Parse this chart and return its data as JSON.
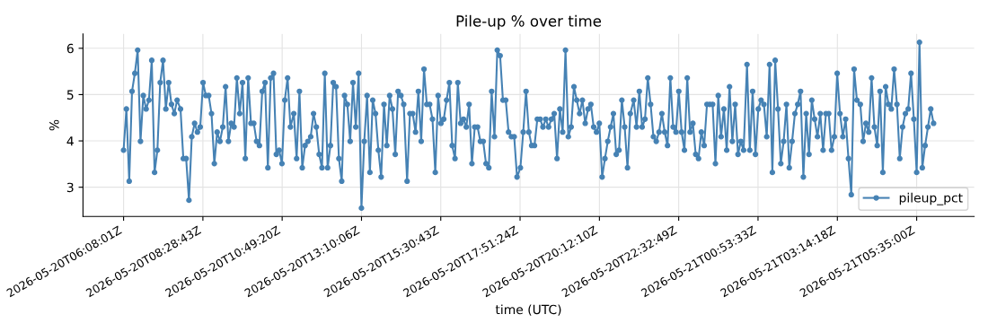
{
  "chart_data": {
    "type": "line",
    "title": "Pile-up % over time",
    "xlabel": "time (UTC)",
    "ylabel": "%",
    "x": [
      "2026-05-20T06:08",
      "2026-05-20T06:13",
      "2026-05-20T06:18",
      "2026-05-20T06:23",
      "2026-05-20T06:28",
      "2026-05-20T06:33",
      "2026-05-20T06:38",
      "2026-05-20T06:43",
      "2026-05-20T06:48",
      "2026-05-20T06:53",
      "2026-05-20T06:58",
      "2026-05-20T07:03",
      "2026-05-20T07:08",
      "2026-05-20T07:13",
      "2026-05-20T07:18",
      "2026-05-20T07:23",
      "2026-05-20T07:28",
      "2026-05-20T07:33",
      "2026-05-20T07:38",
      "2026-05-20T07:43",
      "2026-05-20T07:49",
      "2026-05-20T07:54",
      "2026-05-20T07:59",
      "2026-05-20T08:04",
      "2026-05-20T08:09",
      "2026-05-20T08:14",
      "2026-05-20T08:19",
      "2026-05-20T08:24",
      "2026-05-20T08:29",
      "2026-05-20T08:34",
      "2026-05-20T08:39",
      "2026-05-20T08:44",
      "2026-05-20T08:49",
      "2026-05-20T08:54",
      "2026-05-20T08:59",
      "2026-05-20T09:04",
      "2026-05-20T09:09",
      "2026-05-20T09:14",
      "2026-05-20T09:19",
      "2026-05-20T09:24",
      "2026-05-20T09:29",
      "2026-05-20T09:34",
      "2026-05-20T09:39",
      "2026-05-20T09:44",
      "2026-05-20T09:49",
      "2026-05-20T09:54",
      "2026-05-20T09:59",
      "2026-05-20T10:04",
      "2026-05-20T10:09",
      "2026-05-20T10:14",
      "2026-05-20T10:19",
      "2026-05-20T10:24",
      "2026-05-20T10:29",
      "2026-05-20T10:34",
      "2026-05-20T10:39",
      "2026-05-20T10:44",
      "2026-05-20T10:49",
      "2026-05-20T10:54",
      "2026-05-20T10:59",
      "2026-05-20T11:04",
      "2026-05-20T11:10",
      "2026-05-20T11:15",
      "2026-05-20T11:20",
      "2026-05-20T11:25",
      "2026-05-20T11:30",
      "2026-05-20T11:35",
      "2026-05-20T11:40",
      "2026-05-20T11:45",
      "2026-05-20T11:50",
      "2026-05-20T11:55",
      "2026-05-20T12:00",
      "2026-05-20T12:05",
      "2026-05-20T12:10",
      "2026-05-20T12:15",
      "2026-05-20T12:20",
      "2026-05-20T12:25",
      "2026-05-20T12:30",
      "2026-05-20T12:35",
      "2026-05-20T12:40",
      "2026-05-20T12:45",
      "2026-05-20T12:50",
      "2026-05-20T12:55",
      "2026-05-20T13:00",
      "2026-05-20T13:05",
      "2026-05-20T13:10",
      "2026-05-20T13:15",
      "2026-05-20T13:20",
      "2026-05-20T13:25",
      "2026-05-20T13:30",
      "2026-05-20T13:35",
      "2026-05-20T13:40",
      "2026-05-20T13:45",
      "2026-05-20T13:50",
      "2026-05-20T13:55",
      "2026-05-20T14:00",
      "2026-05-20T14:05",
      "2026-05-20T14:10",
      "2026-05-20T14:15",
      "2026-05-20T14:20",
      "2026-05-20T14:25",
      "2026-05-20T14:31",
      "2026-05-20T14:36",
      "2026-05-20T14:41",
      "2026-05-20T14:46",
      "2026-05-20T14:51",
      "2026-05-20T14:56",
      "2026-05-20T15:01",
      "2026-05-20T15:06",
      "2026-05-20T15:11",
      "2026-05-20T15:16",
      "2026-05-20T15:21",
      "2026-05-20T15:26",
      "2026-05-20T15:31",
      "2026-05-20T15:36",
      "2026-05-20T15:41",
      "2026-05-20T15:46",
      "2026-05-20T15:51",
      "2026-05-20T15:56",
      "2026-05-20T16:01",
      "2026-05-20T16:06",
      "2026-05-20T16:11",
      "2026-05-20T16:16",
      "2026-05-20T16:21",
      "2026-05-20T16:26",
      "2026-05-20T16:31",
      "2026-05-20T16:36",
      "2026-05-20T16:41",
      "2026-05-20T16:46",
      "2026-05-20T16:51",
      "2026-05-20T16:56",
      "2026-05-20T17:01",
      "2026-05-20T17:06",
      "2026-05-20T17:11",
      "2026-05-20T17:16",
      "2026-05-20T17:21",
      "2026-05-20T17:26",
      "2026-05-20T17:31",
      "2026-05-20T17:36",
      "2026-05-20T17:41",
      "2026-05-20T17:46",
      "2026-05-20T17:52",
      "2026-05-20T17:57",
      "2026-05-20T18:02",
      "2026-05-20T18:07",
      "2026-05-20T18:12",
      "2026-05-20T18:17",
      "2026-05-20T18:22",
      "2026-05-20T18:27",
      "2026-05-20T18:32",
      "2026-05-20T18:37",
      "2026-05-20T18:42",
      "2026-05-20T18:47",
      "2026-05-20T18:52",
      "2026-05-20T18:57",
      "2026-05-20T19:02",
      "2026-05-20T19:07",
      "2026-05-20T19:12",
      "2026-05-20T19:17",
      "2026-05-20T19:22",
      "2026-05-20T19:27",
      "2026-05-20T19:32",
      "2026-05-20T19:37",
      "2026-05-20T19:42",
      "2026-05-20T19:47",
      "2026-05-20T19:52",
      "2026-05-20T19:57",
      "2026-05-20T20:02",
      "2026-05-20T20:07",
      "2026-05-20T20:12",
      "2026-05-20T20:17",
      "2026-05-20T20:22",
      "2026-05-20T20:27",
      "2026-05-20T20:32",
      "2026-05-20T20:37",
      "2026-05-20T20:42",
      "2026-05-20T20:47",
      "2026-05-20T20:52",
      "2026-05-20T20:57",
      "2026-05-20T21:02",
      "2026-05-20T21:07",
      "2026-05-20T21:13",
      "2026-05-20T21:18",
      "2026-05-20T21:23",
      "2026-05-20T21:28",
      "2026-05-20T21:33",
      "2026-05-20T21:38",
      "2026-05-20T21:43",
      "2026-05-20T21:48",
      "2026-05-20T21:53",
      "2026-05-20T21:58",
      "2026-05-20T22:03",
      "2026-05-20T22:08",
      "2026-05-20T22:13",
      "2026-05-20T22:18",
      "2026-05-20T22:23",
      "2026-05-20T22:28",
      "2026-05-20T22:33",
      "2026-05-20T22:38",
      "2026-05-20T22:43",
      "2026-05-20T22:48",
      "2026-05-20T22:53",
      "2026-05-20T22:58",
      "2026-05-20T23:03",
      "2026-05-20T23:08",
      "2026-05-20T23:13",
      "2026-05-20T23:18",
      "2026-05-20T23:23",
      "2026-05-20T23:28",
      "2026-05-20T23:33",
      "2026-05-20T23:38",
      "2026-05-20T23:43",
      "2026-05-20T23:48",
      "2026-05-20T23:53",
      "2026-05-20T23:58",
      "2026-05-21T00:03",
      "2026-05-21T00:08",
      "2026-05-21T00:13",
      "2026-05-21T00:18",
      "2026-05-21T00:23",
      "2026-05-21T00:28",
      "2026-05-21T00:34",
      "2026-05-21T00:39",
      "2026-05-21T00:44",
      "2026-05-21T00:49",
      "2026-05-21T00:54",
      "2026-05-21T00:59",
      "2026-05-21T01:04",
      "2026-05-21T01:09",
      "2026-05-21T01:14",
      "2026-05-21T01:19",
      "2026-05-21T01:24",
      "2026-05-21T01:29",
      "2026-05-21T01:34",
      "2026-05-21T01:39",
      "2026-05-21T01:44",
      "2026-05-21T01:49",
      "2026-05-21T01:54",
      "2026-05-21T01:59",
      "2026-05-21T02:04",
      "2026-05-21T02:09",
      "2026-05-21T02:14",
      "2026-05-21T02:19",
      "2026-05-21T02:24",
      "2026-05-21T02:29",
      "2026-05-21T02:34",
      "2026-05-21T02:39",
      "2026-05-21T02:44",
      "2026-05-21T02:49",
      "2026-05-21T02:54",
      "2026-05-21T02:59",
      "2026-05-21T03:04",
      "2026-05-21T03:09",
      "2026-05-21T03:14",
      "2026-05-21T03:19",
      "2026-05-21T03:24",
      "2026-05-21T03:29",
      "2026-05-21T03:34",
      "2026-05-21T03:39",
      "2026-05-21T03:44",
      "2026-05-21T03:49",
      "2026-05-21T03:55",
      "2026-05-21T04:00",
      "2026-05-21T04:05",
      "2026-05-21T04:10",
      "2026-05-21T04:15",
      "2026-05-21T04:20",
      "2026-05-21T04:25",
      "2026-05-21T04:30",
      "2026-05-21T04:35",
      "2026-05-21T04:40",
      "2026-05-21T04:45",
      "2026-05-21T04:50",
      "2026-05-21T04:55",
      "2026-05-21T05:00",
      "2026-05-21T05:05",
      "2026-05-21T05:10",
      "2026-05-21T05:15",
      "2026-05-21T05:20",
      "2026-05-21T05:25",
      "2026-05-21T05:30",
      "2026-05-21T05:35",
      "2026-05-21T05:40",
      "2026-05-21T05:45",
      "2026-05-21T05:50",
      "2026-05-21T05:55",
      "2026-05-21T06:00",
      "2026-05-21T06:05"
    ],
    "series": [
      {
        "name": "pileup_pct",
        "color": "#4682b4",
        "values": [
          3.8,
          4.69,
          3.13,
          5.07,
          5.46,
          5.96,
          3.99,
          4.98,
          4.69,
          4.88,
          5.74,
          3.32,
          3.8,
          5.26,
          5.74,
          4.69,
          5.26,
          4.79,
          4.59,
          4.88,
          4.69,
          3.62,
          3.62,
          2.72,
          4.09,
          4.38,
          4.19,
          4.3,
          5.26,
          4.98,
          4.98,
          4.59,
          3.51,
          4.19,
          3.99,
          4.3,
          5.17,
          3.99,
          4.38,
          4.3,
          5.36,
          4.59,
          5.26,
          3.62,
          5.36,
          4.38,
          4.38,
          3.99,
          3.9,
          5.07,
          5.26,
          3.42,
          5.36,
          5.46,
          3.71,
          3.8,
          3.51,
          4.88,
          5.36,
          4.3,
          4.59,
          3.62,
          5.07,
          3.42,
          3.9,
          3.99,
          4.09,
          4.59,
          4.3,
          3.71,
          3.42,
          5.46,
          3.42,
          3.9,
          5.26,
          5.17,
          3.62,
          3.13,
          4.98,
          4.79,
          3.99,
          5.26,
          4.3,
          5.46,
          2.55,
          3.99,
          4.98,
          3.32,
          4.88,
          4.59,
          3.8,
          3.22,
          4.79,
          3.9,
          4.98,
          4.69,
          3.71,
          5.07,
          4.98,
          4.79,
          3.13,
          4.59,
          4.59,
          4.19,
          5.07,
          3.99,
          5.55,
          4.79,
          4.79,
          4.47,
          3.32,
          4.98,
          4.38,
          4.47,
          4.88,
          5.26,
          3.9,
          3.62,
          5.26,
          4.38,
          4.47,
          4.3,
          4.79,
          3.51,
          4.3,
          4.3,
          3.99,
          3.99,
          3.51,
          3.42,
          5.07,
          4.09,
          5.96,
          5.84,
          4.88,
          4.88,
          4.19,
          4.09,
          4.09,
          3.22,
          3.42,
          4.19,
          5.07,
          4.19,
          3.9,
          3.9,
          4.47,
          4.47,
          4.3,
          4.47,
          4.3,
          4.47,
          4.59,
          3.62,
          4.69,
          4.19,
          5.96,
          4.09,
          4.3,
          5.17,
          4.88,
          4.59,
          4.88,
          4.38,
          4.69,
          4.79,
          4.3,
          4.19,
          4.38,
          3.22,
          3.62,
          3.99,
          4.3,
          4.59,
          3.71,
          3.8,
          4.88,
          4.3,
          3.42,
          4.59,
          4.88,
          4.3,
          5.07,
          4.3,
          4.47,
          5.36,
          4.79,
          4.09,
          3.99,
          4.19,
          4.59,
          4.19,
          3.9,
          5.36,
          4.3,
          4.19,
          5.07,
          4.19,
          3.8,
          5.36,
          4.19,
          4.38,
          3.71,
          3.62,
          4.19,
          3.9,
          4.79,
          4.79,
          4.79,
          3.51,
          4.98,
          4.09,
          4.69,
          3.8,
          5.17,
          3.99,
          4.79,
          3.71,
          3.99,
          3.8,
          5.65,
          3.8,
          5.07,
          3.71,
          4.69,
          4.88,
          4.79,
          4.09,
          5.65,
          3.32,
          5.74,
          4.69,
          3.51,
          3.99,
          4.79,
          3.42,
          3.99,
          4.59,
          4.79,
          5.07,
          3.22,
          4.59,
          3.71,
          4.88,
          4.47,
          4.09,
          4.59,
          3.8,
          4.59,
          4.59,
          3.8,
          4.09,
          5.46,
          4.59,
          4.09,
          4.47,
          3.62,
          2.84,
          5.55,
          4.88,
          4.79,
          3.99,
          4.38,
          4.19,
          5.36,
          4.3,
          3.9,
          5.07,
          3.32,
          5.17,
          4.79,
          4.69,
          5.55,
          4.79,
          3.62,
          4.3,
          4.59,
          4.69,
          5.46,
          4.47,
          3.32,
          6.13,
          3.42,
          3.9,
          4.3,
          4.69,
          4.38
        ]
      }
    ],
    "xlim": [
      "2026-05-20T04:56",
      "2026-05-21T07:17"
    ],
    "xticks": [
      {
        "value": "2026-05-20T06:08:01",
        "label": "2026-05-20T06:08:01Z"
      },
      {
        "value": "2026-05-20T08:28:43",
        "label": "2026-05-20T08:28:43Z"
      },
      {
        "value": "2026-05-20T10:49:20",
        "label": "2026-05-20T10:49:20Z"
      },
      {
        "value": "2026-05-20T13:10:06",
        "label": "2026-05-20T13:10:06Z"
      },
      {
        "value": "2026-05-20T15:30:43",
        "label": "2026-05-20T15:30:43Z"
      },
      {
        "value": "2026-05-20T17:51:24",
        "label": "2026-05-20T17:51:24Z"
      },
      {
        "value": "2026-05-20T20:12:10",
        "label": "2026-05-20T20:12:10Z"
      },
      {
        "value": "2026-05-20T22:32:49",
        "label": "2026-05-20T22:32:49Z"
      },
      {
        "value": "2026-05-21T00:53:33",
        "label": "2026-05-21T00:53:33Z"
      },
      {
        "value": "2026-05-21T03:14:18",
        "label": "2026-05-21T03:14:18Z"
      },
      {
        "value": "2026-05-21T05:35:00",
        "label": "2026-05-21T05:35:00Z"
      }
    ],
    "ylim": [
      2.37,
      6.31
    ],
    "yticks": [
      3,
      4,
      5,
      6
    ],
    "grid": true,
    "legend": "bottom right",
    "marker": "circle",
    "line_style": "solid"
  }
}
